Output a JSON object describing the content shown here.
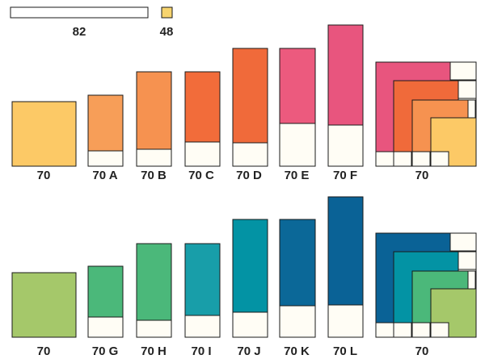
{
  "legend": {
    "items": [
      {
        "name": "long-sheet",
        "label": "82",
        "color": "#ffffff"
      },
      {
        "name": "small-sheet",
        "label": "48",
        "color": "#f7d46e"
      }
    ]
  },
  "colors": {
    "paper": "#fffdf5",
    "outline": "#1a1a1a",
    "row1": [
      "#fcc966",
      "#f79e58",
      "#f69250",
      "#f26c3a",
      "#f06a3a",
      "#ec5a7e",
      "#e8557e"
    ],
    "row2": [
      "#a5c86a",
      "#4bb87a",
      "#4bb87a",
      "#189ea9",
      "#0393a4",
      "#0b6898",
      "#0a6296"
    ]
  },
  "rows": [
    {
      "labels": [
        "70",
        "70 A",
        "70 B",
        "70 C",
        "70 D",
        "70 E",
        "70 F",
        "70"
      ],
      "colored_fraction": [
        1.0,
        0.78,
        0.82,
        0.74,
        0.8,
        0.64,
        0.71
      ]
    },
    {
      "labels": [
        "70",
        "70 G",
        "70 H",
        "70 I",
        "70 J",
        "70 K",
        "70 L"
      ],
      "colored_fraction": [
        1.0,
        0.72,
        0.82,
        0.77,
        0.79,
        0.73,
        0.77
      ],
      "trailing_label": "70"
    }
  ]
}
